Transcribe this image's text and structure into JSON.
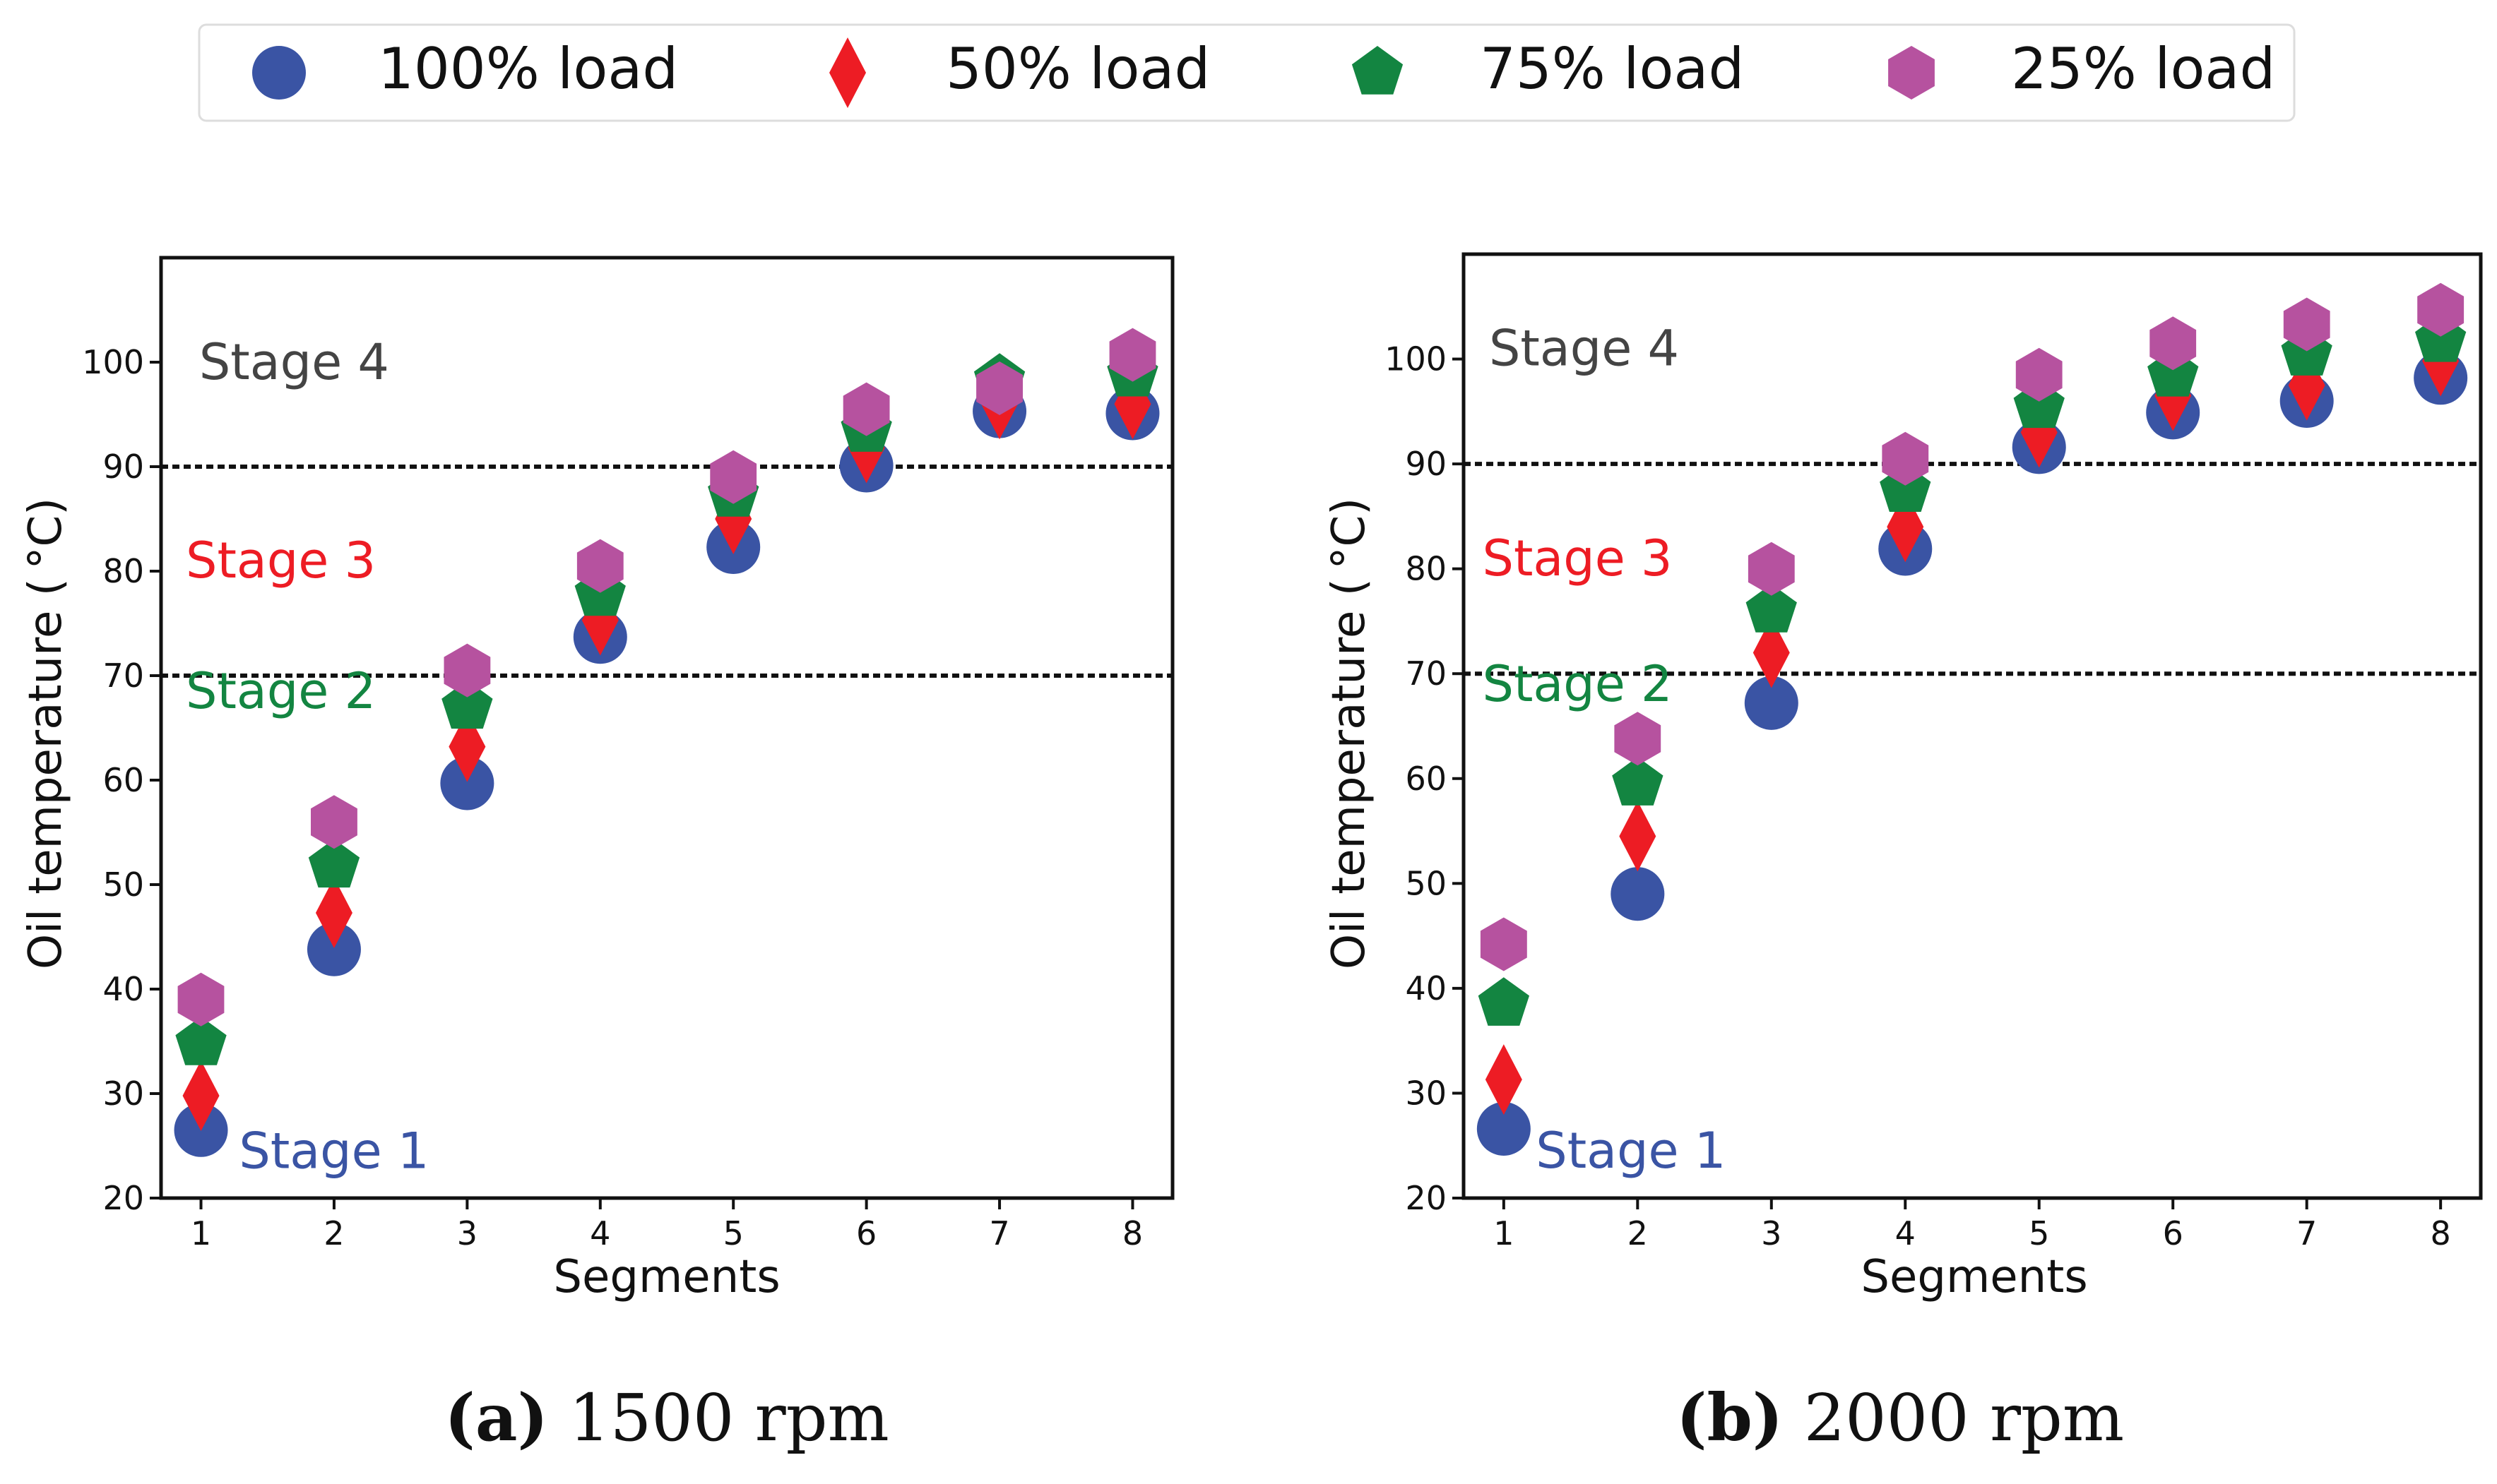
{
  "legend": {
    "items": [
      {
        "label": "100% load",
        "marker": "circle",
        "color": "#3a54a4"
      },
      {
        "label": "50% load",
        "marker": "diamond",
        "color": "#ed1c24"
      },
      {
        "label": "75% load",
        "marker": "pentagon",
        "color": "#138541"
      },
      {
        "label": "25% load",
        "marker": "hexagon",
        "color": "#b6529f"
      }
    ]
  },
  "chart_data": [
    {
      "type": "scatter",
      "caption_letter": "(a)",
      "caption_text": " 1500 rpm",
      "xlabel": "Segments",
      "ylabel": "Oil temperature ( °C)",
      "x": [
        1,
        2,
        3,
        4,
        5,
        6,
        7,
        8
      ],
      "xlim": [
        0.7,
        8.3
      ],
      "ylim": [
        20,
        110
      ],
      "yticks": [
        20,
        30,
        40,
        50,
        60,
        70,
        80,
        90,
        100
      ],
      "thresholds": [
        70,
        90
      ],
      "stages": [
        {
          "label": "Stage 4",
          "x": 1.7,
          "y": 100,
          "color": "#444444"
        },
        {
          "label": "Stage 3",
          "x": 1.6,
          "y": 81,
          "color": "#ed1c24"
        },
        {
          "label": "Stage 2",
          "x": 1.6,
          "y": 68.5,
          "color": "#138541"
        },
        {
          "label": "Stage 1",
          "x": 2.0,
          "y": 24.5,
          "color": "#3a54a4"
        }
      ],
      "series": [
        {
          "name": "100% load",
          "values": [
            26.5,
            43.8,
            59.7,
            73.7,
            82.3,
            90.1,
            95.3,
            95.1
          ]
        },
        {
          "name": "50% load",
          "values": [
            29.8,
            47.3,
            63.2,
            75.3,
            85.0,
            91.8,
            96.0,
            96.0
          ]
        },
        {
          "name": "75% load",
          "values": [
            34.8,
            51.8,
            67.0,
            77.8,
            87.3,
            93.5,
            98.3,
            98.8
          ]
        },
        {
          "name": "25% load",
          "values": [
            39.0,
            56.0,
            70.5,
            80.5,
            89.0,
            95.5,
            97.5,
            100.7
          ]
        }
      ]
    },
    {
      "type": "scatter",
      "caption_letter": "(b)",
      "caption_text": " 2000 rpm",
      "xlabel": "Segments",
      "ylabel": "Oil temperature ( °C)",
      "x": [
        1,
        2,
        3,
        4,
        5,
        6,
        7,
        8
      ],
      "xlim": [
        0.7,
        8.3
      ],
      "ylim": [
        20,
        110
      ],
      "yticks": [
        20,
        30,
        40,
        50,
        60,
        70,
        80,
        90,
        100
      ],
      "thresholds": [
        70,
        90
      ],
      "stages": [
        {
          "label": "Stage 4",
          "x": 1.6,
          "y": 101,
          "color": "#444444"
        },
        {
          "label": "Stage 3",
          "x": 1.55,
          "y": 81,
          "color": "#ed1c24"
        },
        {
          "label": "Stage 2",
          "x": 1.55,
          "y": 69,
          "color": "#138541"
        },
        {
          "label": "Stage 1",
          "x": 1.95,
          "y": 24.5,
          "color": "#3a54a4"
        }
      ],
      "series": [
        {
          "name": "100% load",
          "values": [
            26.6,
            49.0,
            67.2,
            81.9,
            91.6,
            94.9,
            96.0,
            98.2
          ]
        },
        {
          "name": "50% load",
          "values": [
            31.3,
            54.5,
            72.0,
            84.0,
            93.0,
            96.5,
            97.5,
            99.8
          ]
        },
        {
          "name": "75% load",
          "values": [
            38.5,
            59.5,
            76.0,
            87.5,
            95.5,
            98.5,
            100.5,
            101.8
          ]
        },
        {
          "name": "25% load",
          "values": [
            44.2,
            63.8,
            80.0,
            90.5,
            98.5,
            101.5,
            103.3,
            104.7
          ]
        }
      ]
    }
  ]
}
